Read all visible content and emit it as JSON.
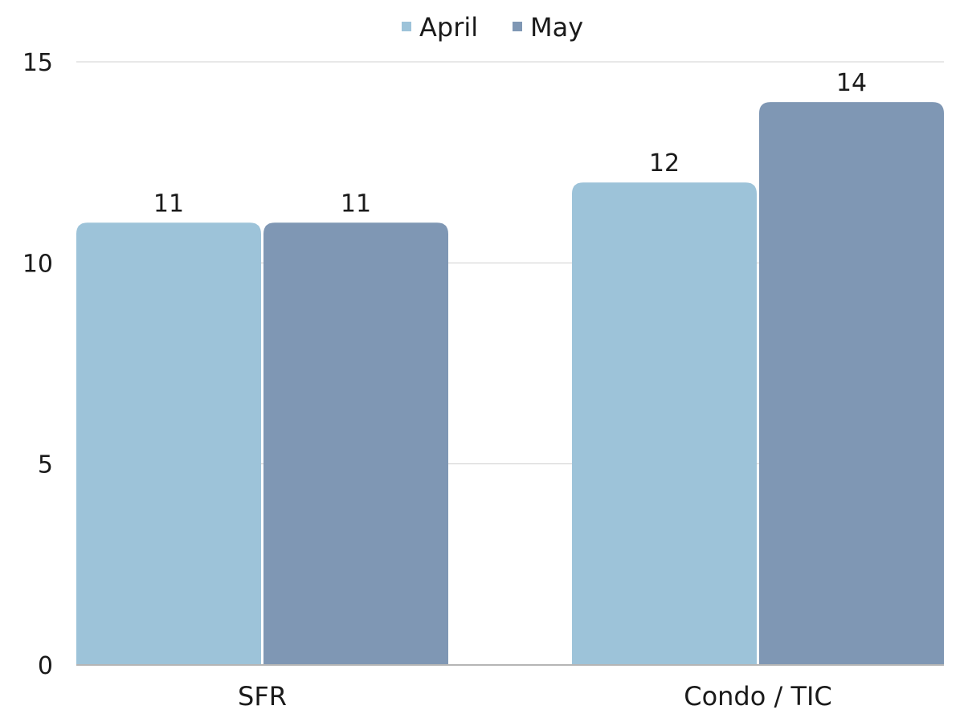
{
  "chart_data": {
    "type": "bar",
    "title": "",
    "xlabel": "",
    "ylabel": "",
    "categories": [
      "SFR",
      "Condo / TIC"
    ],
    "series": [
      {
        "name": "April",
        "values": [
          11,
          12
        ],
        "color": "#9dc3d9"
      },
      {
        "name": "May",
        "values": [
          11,
          14
        ],
        "color": "#7f97b4"
      }
    ],
    "ylim": [
      0,
      15
    ],
    "yticks": [
      "0",
      "5",
      "10",
      "15"
    ],
    "grid": true,
    "legend_position": "top-center",
    "data_labels": true,
    "gridline_color": "#d0d0d0",
    "axis_color": "#b5b5b5"
  }
}
